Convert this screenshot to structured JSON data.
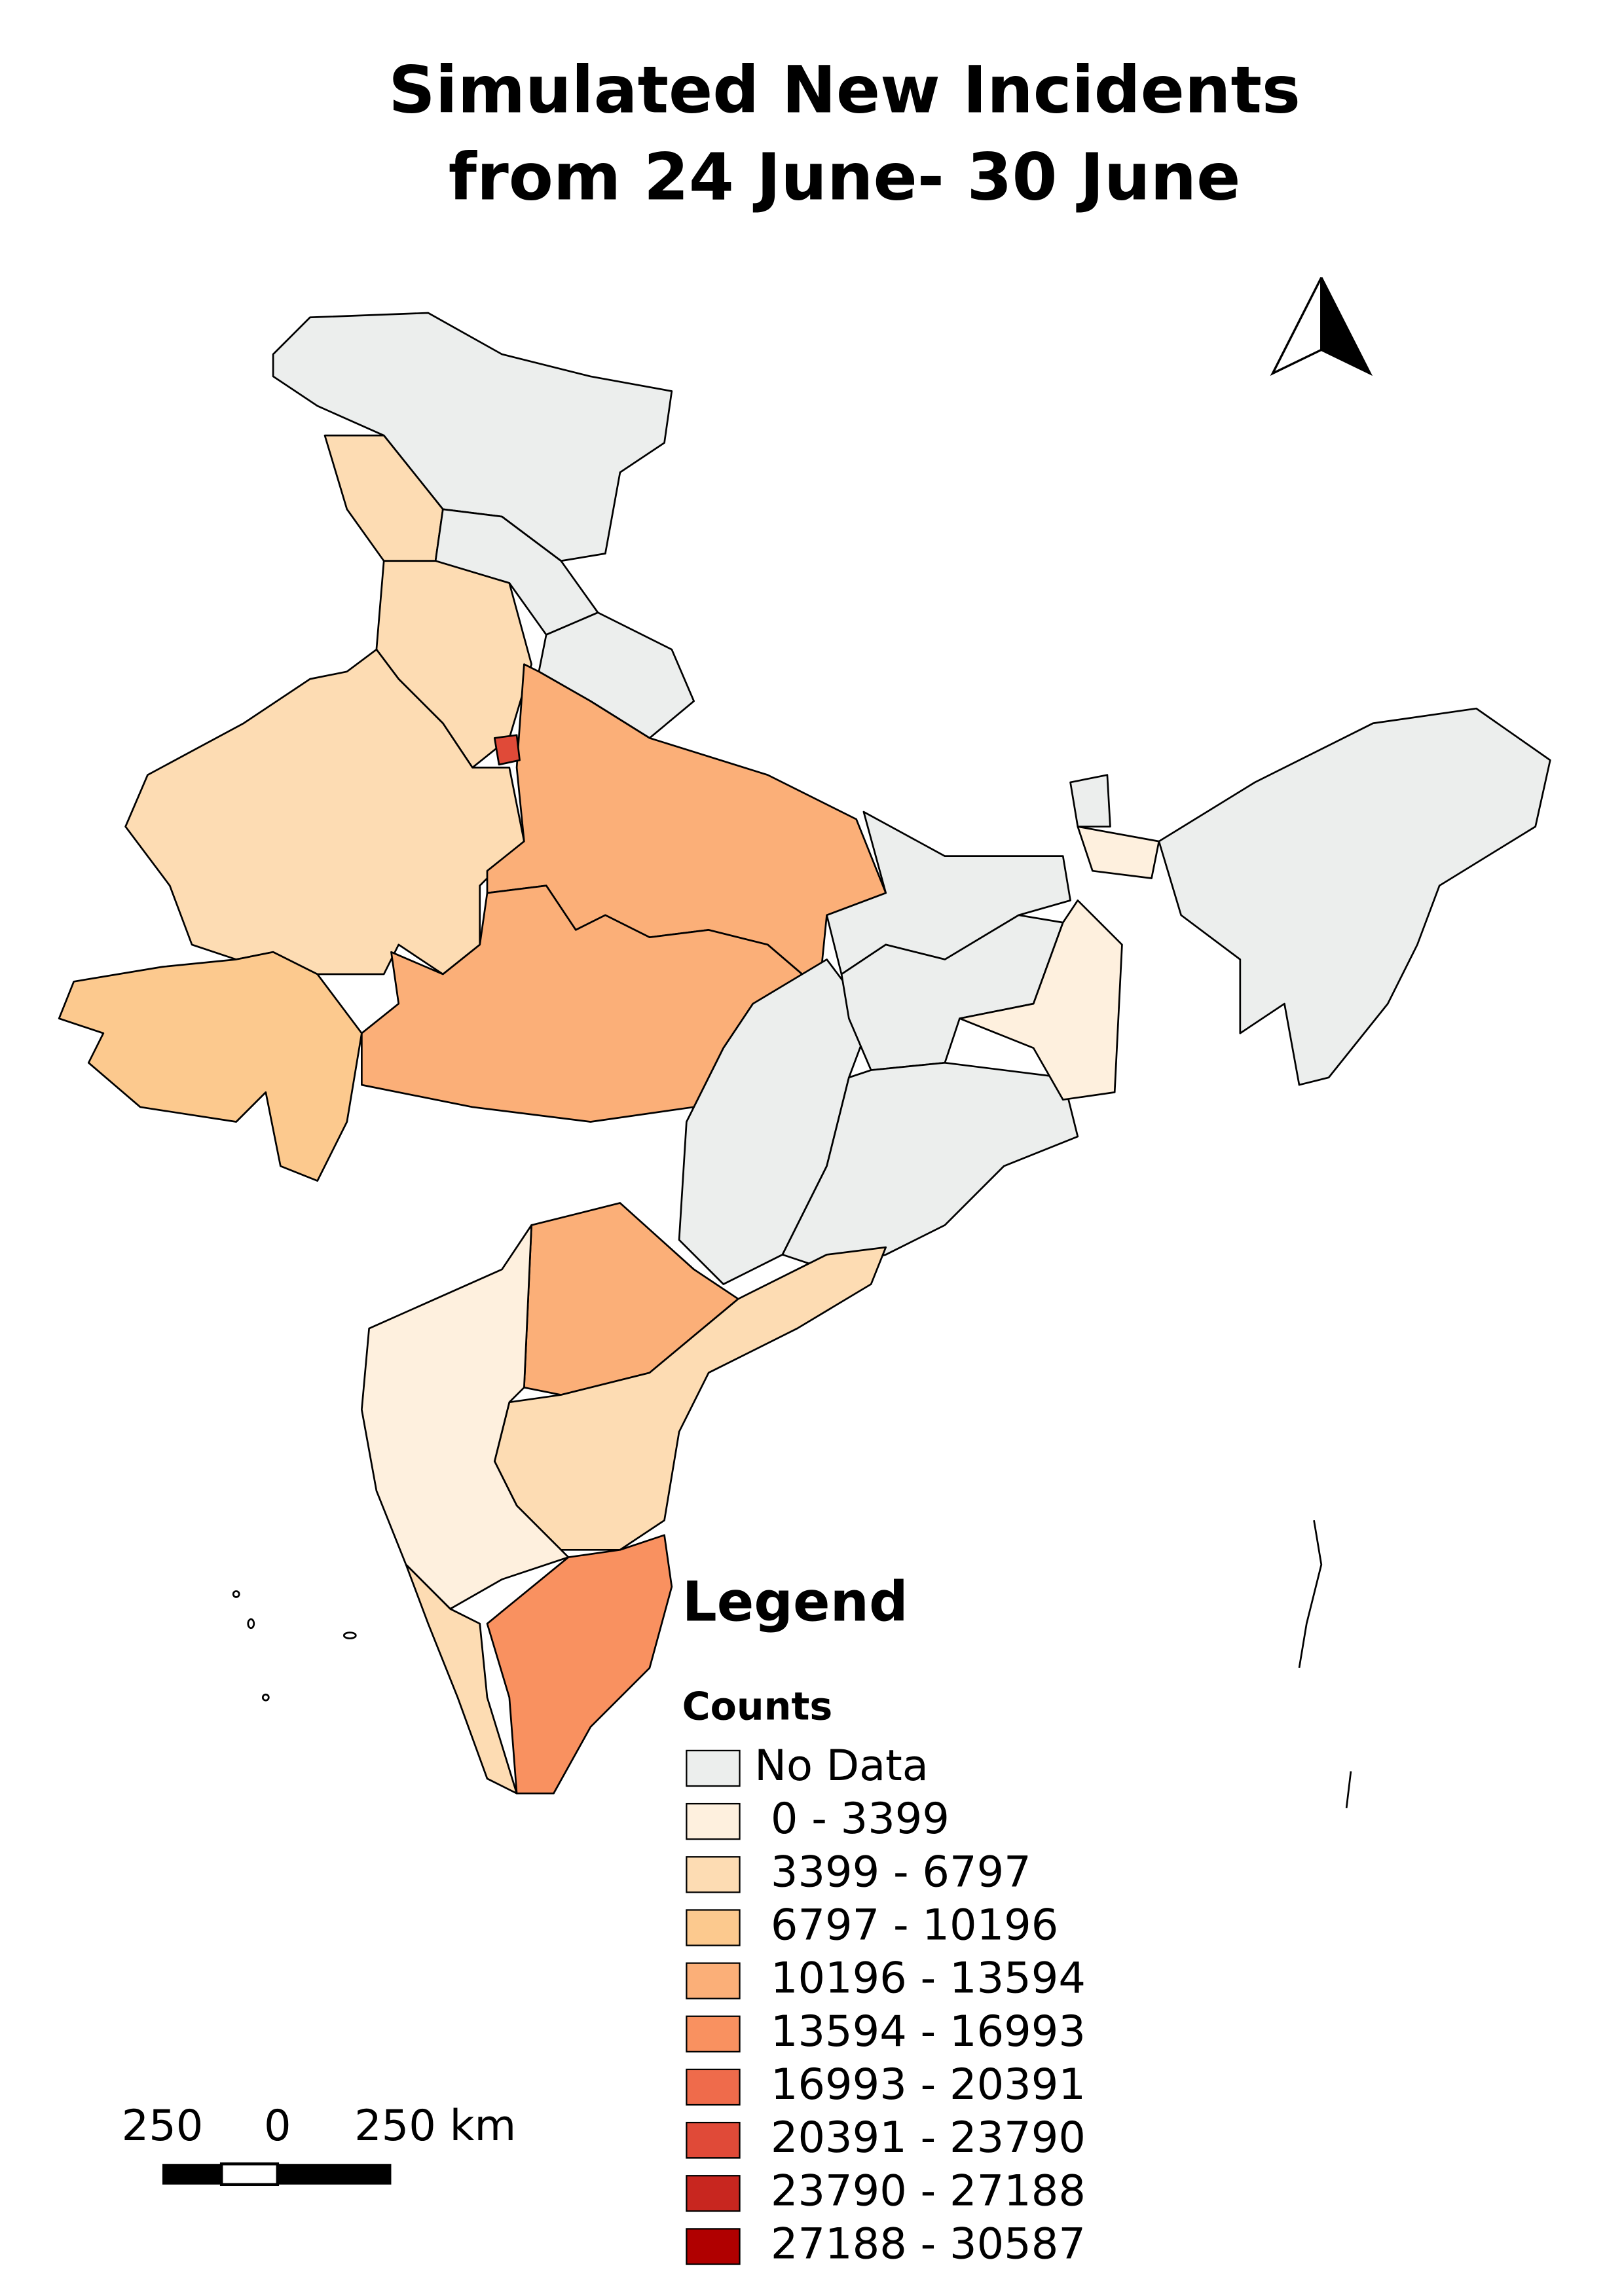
{
  "title": [
    "Simulated New Incidents",
    "from 24 June- 30 June"
  ],
  "legend": {
    "title": "Legend",
    "subtitle": "Counts",
    "items": [
      {
        "label": "No Data",
        "color": "#eceeed"
      },
      {
        "label": "0 - 3399",
        "color": "#fef0de"
      },
      {
        "label": "3399 - 6797",
        "color": "#fddcb3"
      },
      {
        "label": "6797 - 10196",
        "color": "#fcc98e"
      },
      {
        "label": "10196 - 13594",
        "color": "#fbaf78"
      },
      {
        "label": "13594 - 16993",
        "color": "#f99160"
      },
      {
        "label": "16993 - 20391",
        "color": "#ef6b4b"
      },
      {
        "label": "20391 - 23790",
        "color": "#e04a38"
      },
      {
        "label": "23790 - 27188",
        "color": "#c8261f"
      },
      {
        "label": "27188 - 30587",
        "color": "#b00000"
      }
    ]
  },
  "scale_bar": {
    "labels": [
      "250",
      "0",
      "250 km"
    ]
  }
}
